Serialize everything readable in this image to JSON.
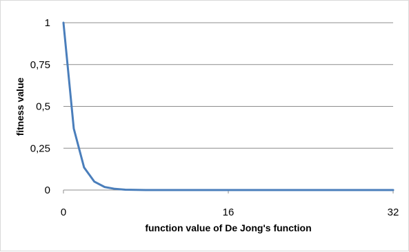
{
  "chart_data": {
    "type": "line",
    "title": "",
    "xlabel": "function value of De Jong's function",
    "ylabel": "fitness value",
    "xlim": [
      0,
      32
    ],
    "ylim": [
      0,
      1
    ],
    "x_ticks": [
      0,
      16,
      32
    ],
    "x_tick_labels": [
      "0",
      "16",
      "32"
    ],
    "y_ticks": [
      0,
      0.25,
      0.5,
      0.75,
      1
    ],
    "y_tick_labels": [
      "0",
      "0,25",
      "0,5",
      "0,75",
      "1"
    ],
    "grid": "horizontal",
    "legend": "none",
    "colors": {
      "line": "#4a7ebb",
      "grid": "#8c8c8c",
      "axis": "#8c8c8c"
    },
    "series": [
      {
        "x": [
          0,
          1,
          2,
          3,
          4,
          5,
          6,
          7,
          8,
          9,
          10,
          11,
          12,
          13,
          14,
          15,
          16,
          17,
          18,
          19,
          20,
          21,
          22,
          23,
          24,
          25,
          26,
          27,
          28,
          29,
          30,
          31,
          32
        ],
        "values": [
          1,
          0.368,
          0.135,
          0.05,
          0.018,
          0.007,
          0.002,
          0.001,
          0,
          0,
          0,
          0,
          0,
          0,
          0,
          0,
          0,
          0,
          0,
          0,
          0,
          0,
          0,
          0,
          0,
          0,
          0,
          0,
          0,
          0,
          0,
          0,
          0
        ]
      }
    ]
  }
}
